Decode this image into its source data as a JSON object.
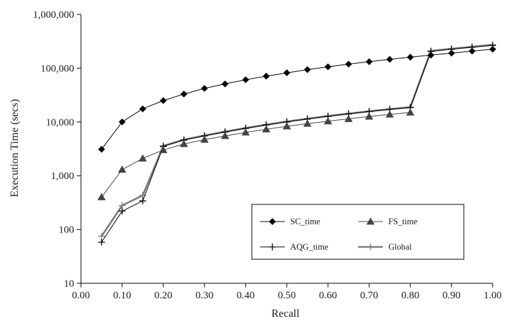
{
  "chart_data": {
    "type": "line",
    "xlabel": "Recall",
    "ylabel": "Execution Time (secs)",
    "yscale": "log",
    "xlim": [
      0,
      1
    ],
    "ylim": [
      10,
      1000000
    ],
    "x_ticks": [
      "0.00",
      "0.10",
      "0.20",
      "0.30",
      "0.40",
      "0.50",
      "0.60",
      "0.70",
      "0.80",
      "0.90",
      "1.00"
    ],
    "y_ticks": [
      "10",
      "100",
      "1,000",
      "10,000",
      "100,000",
      "1,000,000"
    ],
    "grid": false,
    "legend_position": "bottom-right",
    "series": [
      {
        "name": "SC_time",
        "marker": "diamond",
        "color": "#000000",
        "x": [
          0.05,
          0.1,
          0.15,
          0.2,
          0.25,
          0.3,
          0.35,
          0.4,
          0.45,
          0.5,
          0.55,
          0.6,
          0.65,
          0.7,
          0.75,
          0.8,
          0.85,
          0.9,
          0.95,
          1.0
        ],
        "y": [
          3100,
          10000,
          17500,
          25000,
          33000,
          42000,
          51000,
          61000,
          71000,
          82000,
          94000,
          106000,
          119000,
          132000,
          146000,
          160000,
          175000,
          190000,
          208000,
          225000
        ]
      },
      {
        "name": "FS_time",
        "marker": "triangle",
        "color": "#444444",
        "x": [
          0.05,
          0.1,
          0.15,
          0.2,
          0.25,
          0.3,
          0.35,
          0.4,
          0.45,
          0.5,
          0.55,
          0.6,
          0.65,
          0.7,
          0.75,
          0.8
        ],
        "y": [
          400,
          1300,
          2100,
          3000,
          3900,
          4700,
          5500,
          6400,
          7300,
          8300,
          9300,
          10300,
          11400,
          12600,
          13800,
          15000
        ]
      },
      {
        "name": "AQG_time",
        "marker": "plus",
        "color": "#000000",
        "x": [
          0.05,
          0.1,
          0.15,
          0.2,
          0.25,
          0.3,
          0.35,
          0.4,
          0.45,
          0.5,
          0.55,
          0.6,
          0.65,
          0.7,
          0.75,
          0.8,
          0.85,
          0.9,
          0.95,
          1.0
        ],
        "y": [
          58,
          220,
          340,
          3500,
          4600,
          5500,
          6500,
          7600,
          8800,
          10000,
          11300,
          12700,
          14100,
          15600,
          17100,
          18600,
          205000,
          225000,
          245000,
          265000
        ]
      },
      {
        "name": "Global",
        "marker": "plus",
        "color": "#7a7a7a",
        "x": [
          0.05,
          0.1,
          0.15,
          0.2,
          0.25,
          0.3,
          0.35,
          0.4,
          0.45,
          0.5,
          0.55,
          0.6,
          0.65,
          0.7,
          0.75,
          0.8,
          0.85,
          0.9,
          0.95,
          1.0
        ],
        "y": [
          75,
          280,
          430,
          3600,
          4700,
          5600,
          6600,
          7700,
          8900,
          10200,
          11500,
          12900,
          14300,
          15800,
          17300,
          18800,
          210000,
          230000,
          250000,
          272000
        ]
      }
    ]
  }
}
